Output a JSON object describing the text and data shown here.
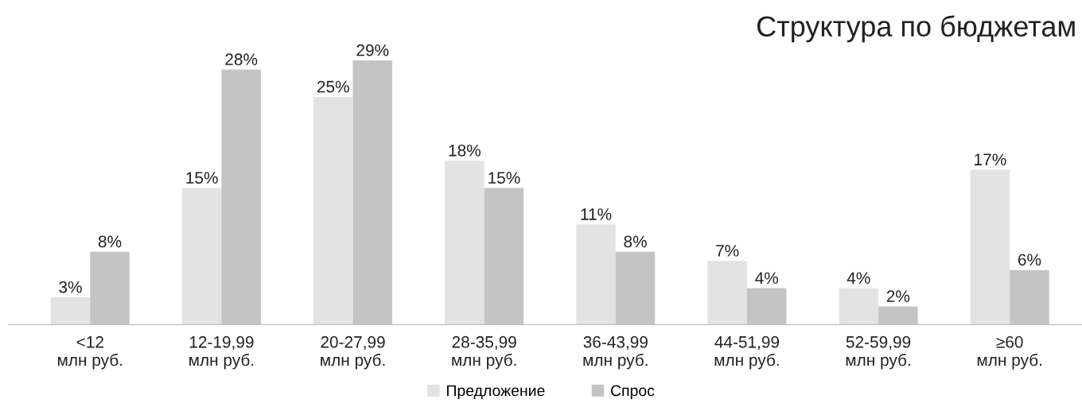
{
  "chart_data": {
    "type": "bar",
    "title": "Структура по бюджетам",
    "categories": [
      "<12\nмлн руб.",
      "12-19,99\nмлн руб.",
      "20-27,99\nмлн руб.",
      "28-35,99\nмлн руб.",
      "36-43,99\nмлн руб.",
      "44-51,99\nмлн руб.",
      "52-59,99\nмлн руб.",
      "≥60\nмлн руб."
    ],
    "series": [
      {
        "name": "Предложение",
        "color": "#e3e3e3",
        "values": [
          3,
          15,
          25,
          18,
          11,
          7,
          4,
          17
        ],
        "value_labels": [
          "3%",
          "15%",
          "25%",
          "18%",
          "11%",
          "7%",
          "4%",
          "17%"
        ]
      },
      {
        "name": "Спрос",
        "color": "#c4c4c4",
        "values": [
          8,
          28,
          29,
          15,
          8,
          4,
          2,
          6
        ],
        "value_labels": [
          "8%",
          "28%",
          "29%",
          "15%",
          "8%",
          "4%",
          "2%",
          "6%"
        ]
      }
    ],
    "legend": "bottom",
    "grid": false
  }
}
